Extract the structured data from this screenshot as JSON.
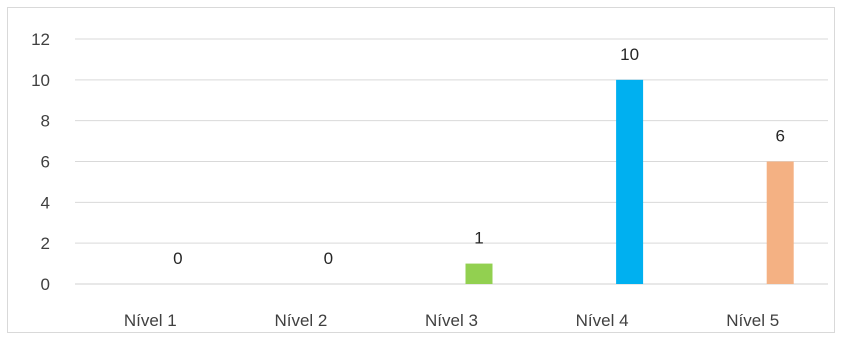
{
  "chart_data": {
    "type": "bar",
    "categories": [
      "Nível 1",
      "Nível 2",
      "Nível 3",
      "Nível 4",
      "Nível 5"
    ],
    "values": [
      0,
      0,
      1,
      10,
      6
    ],
    "colors": [
      "#5b9bd5",
      "#ed7d31",
      "#92d050",
      "#00b0f0",
      "#f4b183"
    ],
    "data_labels": [
      "0",
      "0",
      "1",
      "10",
      "6"
    ],
    "y_ticks": [
      "0",
      "2",
      "4",
      "6",
      "8",
      "10",
      "12"
    ],
    "ylim": [
      0,
      12
    ],
    "grid": true,
    "legend": "none",
    "title": "",
    "xlabel": "",
    "ylabel": ""
  }
}
